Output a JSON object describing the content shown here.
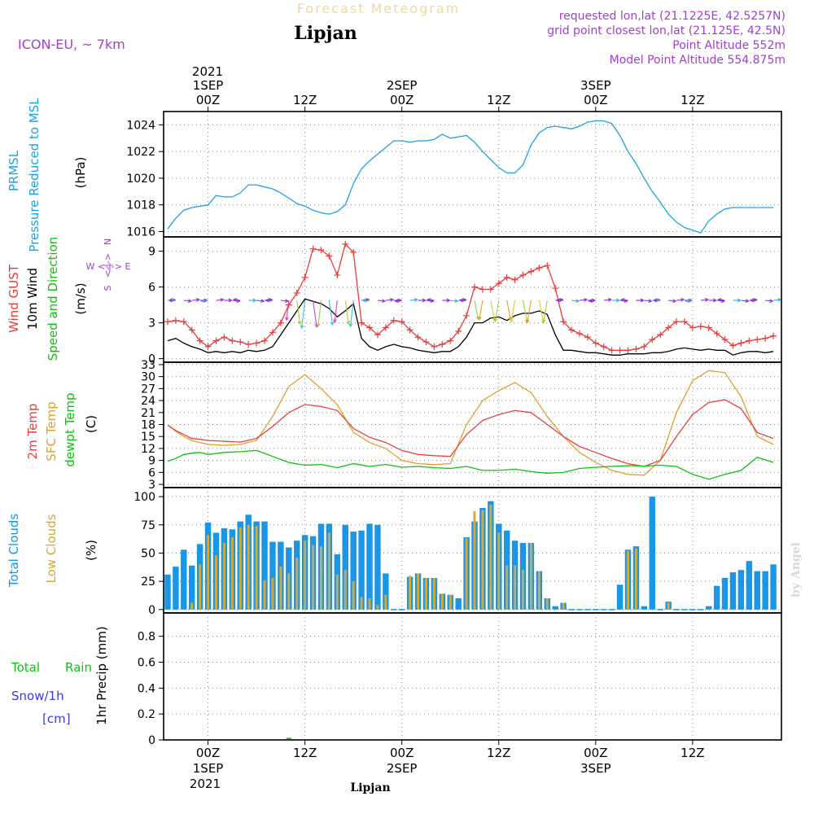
{
  "header": {
    "super_title": "Forecast Meteogram",
    "location": "Lipjan",
    "model": "ICON-EU, ~ 7km",
    "requested": "requested lon,lat (21.1225E, 42.5257N)",
    "grid_point": "grid point closest lon,lat (21.125E, 42.5N)",
    "point_altitude": "Point Altitude 552m",
    "model_altitude": "Model Point Altitude 554.875m",
    "footer_location": "Lipjan",
    "watermark": "by Angel"
  },
  "time_axis": {
    "top_year": "2021",
    "bottom_year": "2021",
    "ticks": [
      {
        "hour": 0,
        "label": "00Z",
        "date": "1SEP"
      },
      {
        "hour": 12,
        "label": "12Z",
        "date": ""
      },
      {
        "hour": 24,
        "label": "00Z",
        "date": "2SEP"
      },
      {
        "hour": 36,
        "label": "12Z",
        "date": ""
      },
      {
        "hour": 48,
        "label": "00Z",
        "date": "3SEP"
      },
      {
        "hour": 60,
        "label": "12Z",
        "date": ""
      }
    ],
    "range_hours": [
      -5.5,
      71
    ]
  },
  "panels": {
    "pressure": {
      "ylabel_main": "PRMSL",
      "ylabel_sub": "Pressure Reduced to MSL",
      "unit": "(hPa)",
      "color": "#1ea0e6",
      "yticks": [
        1016,
        1018,
        1020,
        1022,
        1024
      ],
      "ytick_labels": [
        "1016",
        "1018",
        "1020",
        "1022",
        "1024"
      ]
    },
    "wind": {
      "ylabel_gust": "Wind GUST",
      "ylabel_10m": "10m Wind",
      "ylabel_dir": "Speed and Direction",
      "unit": "(m/s)",
      "compass_ns_n": "N",
      "compass_ns_s": "S",
      "compass_we": "W <-|-> E",
      "gust_color": "#e63c3c",
      "wind_color": "#000000",
      "dir_color": "#10c010",
      "compass_color": "#a040d0",
      "yticks": [
        0,
        3,
        6,
        9
      ],
      "ytick_labels": [
        "0",
        "3",
        "6",
        "9"
      ]
    },
    "temp": {
      "ylabel_2m": "2m Temp",
      "ylabel_sfc": "SFC Temp",
      "ylabel_dew": "dewpt Temp",
      "unit": "(C)",
      "t2m_color": "#e64040",
      "sfc_color": "#e0a030",
      "dew_color": "#10c010",
      "yticks": [
        3,
        6,
        9,
        12,
        15,
        18,
        21,
        24,
        27,
        30,
        33
      ],
      "ytick_labels": [
        "3",
        "6",
        "9",
        "12",
        "15",
        "18",
        "21",
        "24",
        "27",
        "30",
        "33"
      ]
    },
    "clouds": {
      "ylabel_total": "Total Clouds",
      "ylabel_low": "Low Clouds",
      "unit": "(%)",
      "total_color": "#1a96e6",
      "low_color": "#d4a83a",
      "yticks": [
        0,
        25,
        50,
        75,
        100
      ],
      "ytick_labels": [
        "0",
        "25",
        "50",
        "75",
        "100"
      ]
    },
    "precip": {
      "ylabel_total": "Total",
      "ylabel_rain": "Rain",
      "ylabel_snow": "Snow/1h",
      "ylabel_cm": "[cm]",
      "ylabel_axis": "1hr Precip (mm)",
      "rain_color": "#10c010",
      "snow_color": "#3a3ae6",
      "yticks": [
        0,
        0.2,
        0.4,
        0.6,
        0.8
      ],
      "ytick_labels": [
        "0",
        "0.2",
        "0.4",
        "0.6",
        "0.8"
      ]
    }
  },
  "chart_data": {
    "type": "line",
    "x_units": "hours since 2021-09-01 00Z",
    "pressure": {
      "x": [
        -5,
        -4,
        -3,
        -2,
        0,
        1,
        2,
        3,
        4,
        5,
        6,
        8,
        9,
        10,
        11,
        12,
        13,
        14,
        15,
        16,
        17,
        18,
        19,
        20,
        21,
        22,
        23,
        24,
        25,
        26,
        27,
        28,
        29,
        30,
        31,
        32,
        33,
        34,
        35,
        36,
        37,
        38,
        39,
        40,
        41,
        42,
        43,
        44,
        45,
        46,
        47,
        48,
        49,
        50,
        51,
        52,
        53,
        54,
        55,
        56,
        57,
        58,
        59,
        60,
        61,
        62,
        63,
        64,
        65,
        66,
        67,
        68,
        69,
        70
      ],
      "values": [
        1016.2,
        1017.0,
        1017.6,
        1017.8,
        1018.0,
        1018.7,
        1018.6,
        1018.6,
        1018.9,
        1019.5,
        1019.5,
        1019.2,
        1018.9,
        1018.5,
        1018.1,
        1017.9,
        1017.6,
        1017.4,
        1017.3,
        1017.5,
        1018.0,
        1019.6,
        1020.7,
        1021.3,
        1021.8,
        1022.3,
        1022.8,
        1022.8,
        1022.7,
        1022.8,
        1022.8,
        1022.9,
        1023.3,
        1023.0,
        1023.1,
        1023.2,
        1022.7,
        1022.0,
        1021.4,
        1020.8,
        1020.4,
        1020.4,
        1021.0,
        1022.5,
        1023.4,
        1023.8,
        1023.9,
        1023.8,
        1023.7,
        1023.9,
        1024.2,
        1024.3,
        1024.3,
        1024.1,
        1023.2,
        1022.0,
        1021.1,
        1020.0,
        1019.0,
        1018.2,
        1017.3,
        1016.7,
        1016.3,
        1016.1,
        1015.9,
        1016.8,
        1017.3,
        1017.7,
        1017.8,
        1017.8,
        1017.8,
        1017.8,
        1017.8,
        1017.8
      ],
      "ylim": [
        1015.6,
        1025
      ]
    },
    "wind": {
      "x": [
        -5,
        -4,
        -3,
        -2,
        -1,
        0,
        1,
        2,
        3,
        4,
        5,
        6,
        7,
        8,
        9,
        10,
        11,
        12,
        13,
        14,
        15,
        16,
        17,
        18,
        19,
        20,
        21,
        22,
        23,
        24,
        25,
        26,
        27,
        28,
        29,
        30,
        31,
        32,
        33,
        34,
        35,
        36,
        37,
        38,
        39,
        40,
        41,
        42,
        43,
        44,
        45,
        46,
        47,
        48,
        49,
        50,
        51,
        52,
        53,
        54,
        55,
        56,
        57,
        58,
        59,
        60,
        61,
        62,
        63,
        64,
        65,
        66,
        67,
        68,
        69,
        70
      ],
      "gust": [
        3.1,
        3.2,
        3.1,
        2.4,
        1.5,
        1.0,
        1.5,
        1.8,
        1.5,
        1.4,
        1.2,
        1.3,
        1.5,
        2.2,
        3.0,
        4.5,
        5.5,
        6.8,
        9.2,
        9.1,
        8.6,
        7.0,
        9.6,
        8.9,
        3.0,
        2.6,
        2.0,
        2.6,
        3.2,
        3.1,
        2.4,
        1.8,
        1.4,
        1.0,
        1.2,
        1.5,
        2.3,
        3.6,
        6.0,
        5.8,
        5.8,
        6.3,
        6.8,
        6.6,
        7.0,
        7.3,
        7.6,
        7.8,
        5.9,
        3.1,
        2.4,
        2.1,
        1.8,
        1.3,
        1.0,
        0.7,
        0.7,
        0.7,
        0.8,
        1.0,
        1.6,
        2.0,
        2.6,
        3.1,
        3.1,
        2.6,
        2.7,
        2.6,
        2.1,
        1.6,
        1.1,
        1.3,
        1.5,
        1.6,
        1.7,
        1.9
      ],
      "speed": [
        1.5,
        1.7,
        1.3,
        1.0,
        0.8,
        0.5,
        0.6,
        0.5,
        0.6,
        0.5,
        0.7,
        0.6,
        0.7,
        1.0,
        2.0,
        3.0,
        4.0,
        5.0,
        4.8,
        4.6,
        4.2,
        3.5,
        4.0,
        4.6,
        1.7,
        1.0,
        0.7,
        1.0,
        1.2,
        1.0,
        0.9,
        0.7,
        0.6,
        0.5,
        0.6,
        0.6,
        1.0,
        1.8,
        3.0,
        3.0,
        3.4,
        3.5,
        3.2,
        3.6,
        3.8,
        3.8,
        4.0,
        3.7,
        2.0,
        0.7,
        0.7,
        0.6,
        0.5,
        0.5,
        0.4,
        0.3,
        0.3,
        0.4,
        0.4,
        0.4,
        0.5,
        0.5,
        0.6,
        0.8,
        0.9,
        0.8,
        0.7,
        0.8,
        0.7,
        0.7,
        0.3,
        0.5,
        0.6,
        0.6,
        0.5,
        0.6
      ],
      "ylim": [
        -0.3,
        10.2
      ]
    },
    "temp": {
      "x": [
        -5,
        -4,
        -3,
        -2,
        -1,
        0,
        2,
        4,
        6,
        8,
        10,
        12,
        14,
        16,
        18,
        20,
        22,
        24,
        26,
        28,
        30,
        32,
        34,
        36,
        38,
        40,
        42,
        44,
        46,
        48,
        50,
        52,
        54,
        56,
        58,
        60,
        62,
        64,
        66,
        68,
        70
      ],
      "t2m": [
        17.8,
        16.5,
        15.5,
        14.5,
        14.3,
        14.0,
        13.8,
        13.6,
        14.5,
        17.5,
        21.0,
        23.0,
        22.5,
        21.5,
        17.0,
        14.8,
        13.5,
        11.5,
        10.5,
        10.2,
        10.0,
        15.5,
        19.0,
        20.5,
        21.5,
        21.0,
        18.0,
        15.0,
        12.5,
        11.0,
        9.5,
        8.2,
        7.5,
        9.0,
        15.0,
        20.5,
        23.5,
        24.2,
        22.0,
        16.0,
        14.5
      ],
      "sfc": [
        18.0,
        16.3,
        15.0,
        14.0,
        13.5,
        13.0,
        12.8,
        13.0,
        14.0,
        20.0,
        27.5,
        30.5,
        27.0,
        23.0,
        16.0,
        13.5,
        12.0,
        9.0,
        8.2,
        8.0,
        8.2,
        18.0,
        24.0,
        26.5,
        28.5,
        26.0,
        20.0,
        15.0,
        11.0,
        8.5,
        6.5,
        5.5,
        5.3,
        9.0,
        21.0,
        29.0,
        31.5,
        31.0,
        25.0,
        15.0,
        13.0
      ],
      "dew": [
        8.8,
        9.5,
        10.5,
        10.8,
        11.0,
        10.5,
        11.0,
        11.2,
        11.5,
        10.0,
        8.5,
        7.8,
        8.0,
        7.2,
        8.2,
        7.5,
        8.0,
        7.3,
        7.5,
        7.2,
        7.0,
        7.5,
        6.5,
        6.5,
        6.8,
        6.2,
        5.8,
        6.0,
        7.0,
        7.3,
        7.5,
        7.7,
        7.6,
        7.8,
        7.5,
        5.5,
        4.3,
        5.5,
        6.5,
        9.8,
        8.5
      ],
      "ylim": [
        2.2,
        33.6
      ]
    },
    "clouds": {
      "x": [
        -5,
        -4,
        -3,
        -2,
        -1,
        0,
        1,
        2,
        3,
        4,
        5,
        6,
        7,
        8,
        9,
        10,
        11,
        12,
        13,
        14,
        15,
        16,
        17,
        18,
        19,
        20,
        21,
        22,
        23,
        24,
        25,
        26,
        27,
        28,
        29,
        30,
        31,
        32,
        33,
        34,
        35,
        36,
        37,
        38,
        39,
        40,
        41,
        42,
        43,
        44,
        45,
        46,
        47,
        48,
        49,
        50,
        51,
        52,
        53,
        54,
        55,
        56,
        57,
        58,
        59,
        60,
        61,
        62,
        63,
        64,
        65,
        66,
        67,
        68,
        69,
        70
      ],
      "total": [
        31,
        38,
        53,
        39,
        58,
        77,
        68,
        72,
        71,
        78,
        84,
        78,
        78,
        60,
        60,
        55,
        61,
        66,
        65,
        76,
        76,
        49,
        75,
        69,
        70,
        76,
        75,
        32,
        0,
        0,
        29,
        32,
        28,
        28,
        14,
        13,
        10,
        64,
        78,
        90,
        96,
        76,
        70,
        61,
        59,
        59,
        34,
        10,
        3,
        6,
        0,
        0,
        0,
        0,
        0,
        0,
        22,
        53,
        56,
        3,
        100,
        0,
        7,
        0,
        0,
        0,
        0,
        3,
        21,
        28,
        33,
        35,
        43,
        34,
        34,
        40
      ],
      "low": [
        0,
        0,
        0,
        6,
        40,
        66,
        48,
        59,
        64,
        73,
        75,
        74,
        26,
        28,
        38,
        32,
        46,
        61,
        57,
        56,
        68,
        31,
        35,
        25,
        11,
        10,
        4,
        13,
        0,
        0,
        30,
        32,
        28,
        28,
        14,
        13,
        0,
        63,
        87,
        88,
        93,
        68,
        39,
        39,
        35,
        59,
        34,
        10,
        0,
        6,
        0,
        0,
        0,
        0,
        0,
        0,
        0,
        52,
        54,
        0,
        0,
        0,
        6,
        0,
        0,
        0,
        0,
        0,
        0,
        0,
        0,
        0,
        0,
        0,
        0,
        0
      ],
      "ylim": [
        -3,
        108
      ]
    },
    "precip": {
      "x": [
        10
      ],
      "rain": [
        0.01
      ],
      "ylim": [
        0,
        0.98
      ]
    }
  }
}
